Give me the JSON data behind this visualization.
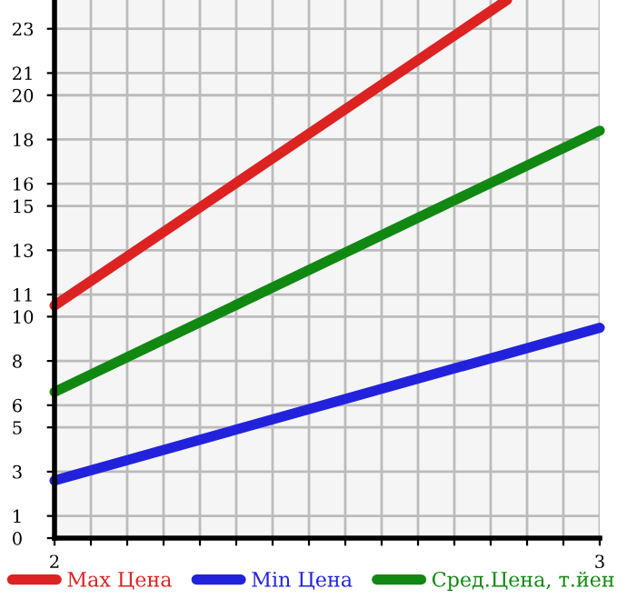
{
  "chart_data": {
    "type": "line",
    "series": [
      {
        "name": "Max Цена",
        "color": "#dd2222",
        "x": [
          2,
          2.83
        ],
        "values": [
          10.5,
          24.3
        ]
      },
      {
        "name": "Min Цена",
        "color": "#2222dd",
        "x": [
          2,
          3
        ],
        "values": [
          2.6,
          9.5
        ]
      },
      {
        "name": "Сред.Цена, т.йен",
        "color": "#118811",
        "x": [
          2,
          3
        ],
        "values": [
          6.6,
          18.4
        ]
      }
    ],
    "xlim": [
      2,
      3
    ],
    "xticks": [
      2,
      {
        "value": 2.0667,
        "label": null
      },
      {
        "value": 2.1333,
        "label": null
      },
      {
        "value": 2.2,
        "label": null
      },
      {
        "value": 2.2667,
        "label": null
      },
      {
        "value": 2.3333,
        "label": null
      },
      {
        "value": 2.4,
        "label": null
      },
      {
        "value": 2.4667,
        "label": null
      },
      {
        "value": 2.5333,
        "label": null
      },
      {
        "value": 2.6,
        "label": null
      },
      {
        "value": 2.6667,
        "label": null
      },
      {
        "value": 2.7333,
        "label": null
      },
      {
        "value": 2.8,
        "label": null
      },
      {
        "value": 2.8667,
        "label": null
      },
      {
        "value": 2.9333,
        "label": null
      },
      3
    ],
    "ylim": [
      0,
      24.3
    ],
    "yticks": [
      0,
      1,
      3,
      5,
      6,
      8,
      10,
      11,
      13,
      15,
      16,
      18,
      20,
      21,
      23
    ],
    "grid": true,
    "legend": "bottom",
    "marker": "none",
    "line_style": "solid"
  }
}
